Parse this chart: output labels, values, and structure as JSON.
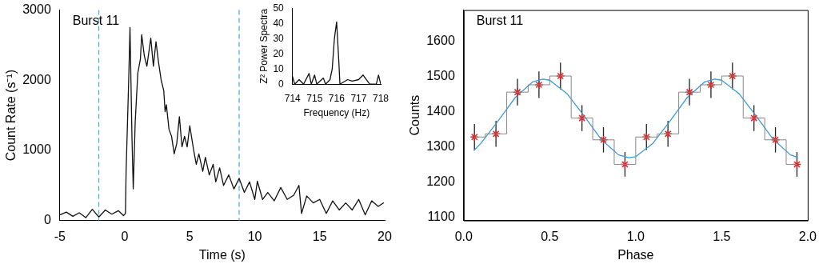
{
  "chart_data": [
    {
      "type": "line",
      "xlabel": "Time (s)",
      "ylabel": "Count Rate (s⁻¹)",
      "xlim": [
        -5,
        20
      ],
      "ylim": [
        0,
        3000
      ],
      "xticks": [
        -5,
        0,
        5,
        10,
        15,
        20
      ],
      "yticks": [
        0,
        1000,
        2000,
        3000
      ],
      "annotations": [
        "Burst 11"
      ],
      "ref_lines": [
        {
          "axis": "x",
          "value": -2,
          "color": "#4aa3df",
          "line_style": "dashed"
        },
        {
          "axis": "x",
          "value": 8.8,
          "color": "#4aa3df",
          "line_style": "dashed"
        }
      ],
      "series": [
        {
          "color": "#111111",
          "x": [
            -5,
            -4.5,
            -4,
            -3.5,
            -3,
            -2.5,
            -2,
            -1.5,
            -1,
            -0.5,
            -0.1,
            0.05,
            0.1,
            0.3,
            0.4,
            0.55,
            0.65,
            0.8,
            1.0,
            1.2,
            1.3,
            1.5,
            1.7,
            2.0,
            2.2,
            2.4,
            2.6,
            2.8,
            3.0,
            3.1,
            3.2,
            3.4,
            3.6,
            3.8,
            4.0,
            4.2,
            4.4,
            4.6,
            4.8,
            5.0,
            5.3,
            5.5,
            5.7,
            6.0,
            6.2,
            6.5,
            6.8,
            7.0,
            7.3,
            7.6,
            8.0,
            8.4,
            8.8,
            9.2,
            9.6,
            10.0,
            10.2,
            10.6,
            11.0,
            11.5,
            12.0,
            12.5,
            13.0,
            13.4,
            13.6,
            14.0,
            14.5,
            15.0,
            15.5,
            16.0,
            16.5,
            17.0,
            17.5,
            18.0,
            18.5,
            19.0,
            19.5,
            19.9
          ],
          "values": [
            80,
            120,
            60,
            110,
            40,
            160,
            50,
            150,
            90,
            140,
            70,
            100,
            700,
            2000,
            2750,
            1200,
            450,
            1400,
            2100,
            2300,
            2650,
            2350,
            2200,
            2600,
            2200,
            2550,
            2250,
            2000,
            1850,
            1550,
            1650,
            1300,
            1200,
            950,
            1100,
            1480,
            1050,
            1200,
            1050,
            1350,
            1000,
            800,
            950,
            700,
            900,
            650,
            800,
            550,
            750,
            500,
            650,
            450,
            600,
            400,
            550,
            300,
            560,
            300,
            400,
            280,
            470,
            300,
            360,
            500,
            100,
            350,
            250,
            300,
            100,
            280,
            150,
            250,
            150,
            300,
            80,
            280,
            200,
            250
          ]
        }
      ]
    },
    {
      "type": "line",
      "xlabel": "Frequency (Hz)",
      "ylabel": "Z² Power Spectra",
      "xlim": [
        714,
        718
      ],
      "ylim": [
        0,
        50
      ],
      "xticks": [
        714,
        715,
        716,
        717,
        718
      ],
      "yticks": [
        0,
        10,
        20,
        30,
        40,
        50
      ],
      "series": [
        {
          "color": "#111111",
          "x": [
            714,
            714.1,
            714.3,
            714.5,
            714.75,
            714.85,
            715.0,
            715.1,
            715.4,
            715.5,
            715.7,
            715.8,
            715.9,
            716.0,
            716.1,
            716.15,
            716.5,
            716.7,
            717.0,
            717.2,
            717.4,
            717.5,
            717.8,
            717.9,
            718
          ],
          "values": [
            5,
            0,
            3,
            0,
            7,
            0,
            6,
            0,
            4,
            0,
            3,
            10,
            30,
            41,
            15,
            0,
            3,
            2,
            3,
            6,
            2,
            0,
            0,
            6,
            0
          ]
        }
      ]
    },
    {
      "type": "scatter",
      "xlabel": "Phase",
      "ylabel": "Counts",
      "xlim": [
        0,
        2
      ],
      "ylim": [
        1090,
        1690
      ],
      "xticks": [
        {
          "value": 0,
          "label": "0.0"
        },
        {
          "value": 0.5,
          "label": "0.5"
        },
        {
          "value": 1,
          "label": "1.0"
        },
        {
          "value": 1.5,
          "label": "1.5"
        },
        {
          "value": 2,
          "label": "2.0"
        }
      ],
      "yticks": [
        1100,
        1200,
        1300,
        1400,
        1500,
        1600
      ],
      "annotations": [
        "Burst 11"
      ],
      "series": [
        {
          "type": "step",
          "color": "#888888",
          "x": [
            0.0625,
            0.1875,
            0.3125,
            0.4375,
            0.5625,
            0.6875,
            0.8125,
            0.9375,
            1.0625,
            1.1875,
            1.3125,
            1.4375,
            1.5625,
            1.6875,
            1.8125,
            1.9375
          ],
          "values": [
            1328,
            1337,
            1456,
            1477,
            1502,
            1382,
            1320,
            1250,
            1328,
            1337,
            1456,
            1477,
            1502,
            1382,
            1320,
            1250
          ]
        },
        {
          "color": "#d62728",
          "marker": "cross",
          "x": [
            0.0625,
            0.1875,
            0.3125,
            0.4375,
            0.5625,
            0.6875,
            0.8125,
            0.9375,
            1.0625,
            1.1875,
            1.3125,
            1.4375,
            1.5625,
            1.6875,
            1.8125,
            1.9375
          ],
          "values": [
            1328,
            1337,
            1456,
            1477,
            1502,
            1382,
            1320,
            1250,
            1328,
            1337,
            1456,
            1477,
            1502,
            1382,
            1320,
            1250
          ],
          "errors": [
            37,
            37,
            38,
            38,
            38,
            37,
            36,
            35,
            37,
            37,
            38,
            38,
            38,
            37,
            36,
            35
          ]
        },
        {
          "type": "line",
          "color": "#3b9bd6",
          "x": [
            0.06,
            0.1,
            0.2,
            0.3,
            0.4,
            0.46,
            0.5,
            0.6,
            0.7,
            0.8,
            0.9,
            0.96,
            1.0,
            1.1,
            1.2,
            1.3,
            1.4,
            1.46,
            1.5,
            1.6,
            1.7,
            1.8,
            1.9,
            1.94
          ],
          "values": [
            1290,
            1310,
            1374,
            1441,
            1485,
            1493,
            1490,
            1452,
            1388,
            1321,
            1277,
            1269,
            1272,
            1310,
            1374,
            1441,
            1485,
            1493,
            1490,
            1452,
            1388,
            1321,
            1277,
            1270
          ]
        }
      ]
    }
  ]
}
